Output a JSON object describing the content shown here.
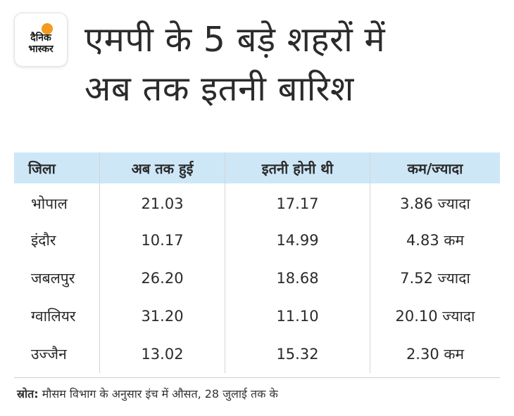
{
  "logo": {
    "line1": "दैनिक",
    "line2": "भास्कर",
    "sun_color": "#f39a1f"
  },
  "title": {
    "line1": "एमपी के 5 बड़े शहरों में",
    "line2": "अब तक इतनी बारिश"
  },
  "table": {
    "header_bg": "#cde7f7",
    "columns": [
      "जिला",
      "अब तक हुई",
      "इतनी होनी थी",
      "कम/ज्यादा"
    ],
    "rows": [
      [
        "भोपाल",
        "21.03",
        "17.17",
        "3.86 ज्यादा"
      ],
      [
        "इंदौर",
        "10.17",
        "14.99",
        "4.83 कम"
      ],
      [
        "जबलपुर",
        "26.20",
        "18.68",
        "7.52 ज्यादा"
      ],
      [
        "ग्वालियर",
        "31.20",
        "11.10",
        "20.10 ज्यादा"
      ],
      [
        "उज्जैन",
        "13.02",
        "15.32",
        "2.30 कम"
      ]
    ]
  },
  "source": {
    "label": "स्रोत:",
    "text": " मौसम विभाग के अनुसार इंच में औसत, 28 जुलाई तक के"
  }
}
